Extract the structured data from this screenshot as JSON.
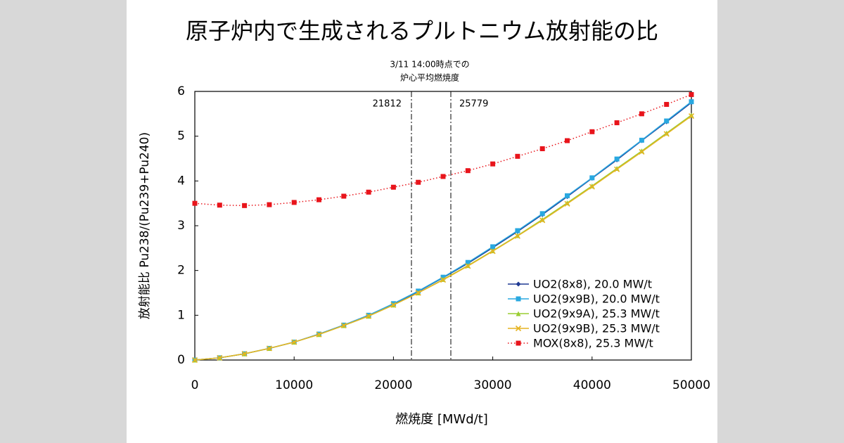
{
  "chart_data": {
    "type": "line",
    "title": "原子炉内で生成されるプルトニウム放射能の比",
    "x_label": "燃焼度 [MWd/t]",
    "y_label": "放射能比  Pu238/(Pu239+Pu240)",
    "annotation": [
      "3/11 14:00時点での",
      "炉心平均燃焼度"
    ],
    "vlines": [
      21812,
      25779
    ],
    "x": [
      0,
      2500,
      5000,
      7500,
      10000,
      12500,
      15000,
      17500,
      20000,
      22500,
      25000,
      27500,
      30000,
      32500,
      35000,
      37500,
      40000,
      42500,
      45000,
      47500,
      50000
    ],
    "series": [
      {
        "name": "UO2(8x8), 20.0 MW/t",
        "color": "#1f3a93",
        "marker": "diamond",
        "dash": "solid",
        "values": [
          0,
          0.05,
          0.14,
          0.26,
          0.4,
          0.58,
          0.78,
          1.0,
          1.25,
          1.53,
          1.84,
          2.16,
          2.51,
          2.87,
          3.25,
          3.65,
          4.06,
          4.47,
          4.9,
          5.32,
          5.75
        ]
      },
      {
        "name": "UO2(9x9B), 20.0 MW/t",
        "color": "#29a8e0",
        "marker": "square",
        "dash": "solid",
        "values": [
          0,
          0.05,
          0.14,
          0.26,
          0.4,
          0.58,
          0.78,
          1.0,
          1.26,
          1.54,
          1.85,
          2.18,
          2.53,
          2.89,
          3.27,
          3.67,
          4.07,
          4.49,
          4.91,
          5.34,
          5.77
        ]
      },
      {
        "name": "UO2(9x9A), 25.3 MW/t",
        "color": "#9acd32",
        "marker": "triangle",
        "dash": "solid",
        "values": [
          0,
          0.05,
          0.14,
          0.26,
          0.4,
          0.57,
          0.77,
          0.98,
          1.23,
          1.5,
          1.8,
          2.11,
          2.44,
          2.78,
          3.14,
          3.51,
          3.89,
          4.28,
          4.67,
          5.07,
          5.47
        ]
      },
      {
        "name": "UO2(9x9B), 25.3 MW/t",
        "color": "#e6b422",
        "marker": "x",
        "dash": "solid",
        "values": [
          0,
          0.05,
          0.14,
          0.26,
          0.4,
          0.57,
          0.77,
          0.98,
          1.23,
          1.5,
          1.79,
          2.1,
          2.43,
          2.77,
          3.12,
          3.49,
          3.87,
          4.26,
          4.65,
          5.05,
          5.45
        ]
      },
      {
        "name": "MOX(8x8), 25.3 MW/t",
        "color": "#e8141b",
        "marker": "square",
        "dash": "dotted",
        "values": [
          3.5,
          3.46,
          3.45,
          3.47,
          3.52,
          3.58,
          3.66,
          3.75,
          3.86,
          3.97,
          4.1,
          4.23,
          4.38,
          4.55,
          4.72,
          4.9,
          5.1,
          5.3,
          5.5,
          5.71,
          5.93
        ]
      }
    ],
    "xlim": [
      0,
      50000
    ],
    "xticks": [
      0,
      10000,
      20000,
      30000,
      40000,
      50000
    ],
    "ylim": [
      0,
      6
    ],
    "yticks": [
      0,
      1,
      2,
      3,
      4,
      5,
      6
    ],
    "grid": false,
    "legend": "lower right"
  }
}
